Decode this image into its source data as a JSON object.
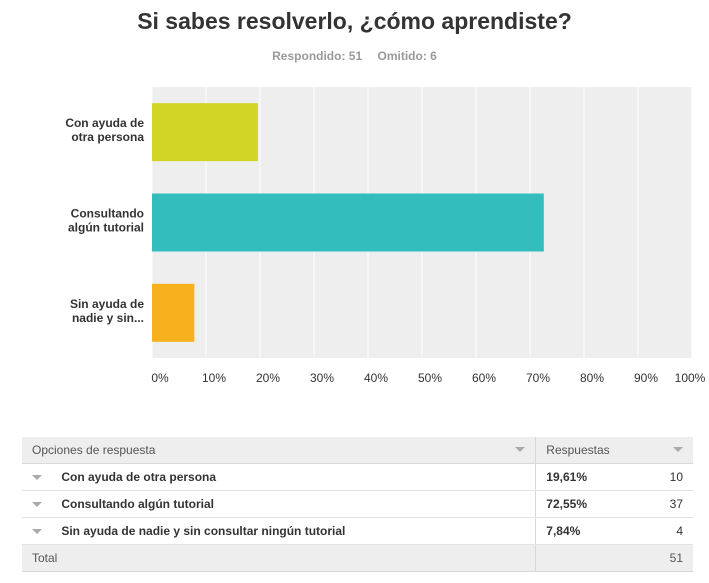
{
  "title": "Si sabes resolverlo, ¿cómo aprendiste?",
  "stats": {
    "answered": "Respondido: 51",
    "skipped": "Omitido: 6"
  },
  "chart_data": {
    "type": "bar",
    "orientation": "horizontal",
    "categories": [
      [
        "Con ayuda de",
        "otra persona"
      ],
      [
        "Consultando",
        "algún tutorial"
      ],
      [
        "Sin ayuda de",
        "nadie y sin..."
      ]
    ],
    "values": [
      19.61,
      72.55,
      7.84
    ],
    "colors": [
      "#d0d526",
      "#33bdbd",
      "#f7b11f"
    ],
    "xticks": [
      "0%",
      "10%",
      "20%",
      "30%",
      "40%",
      "50%",
      "60%",
      "70%",
      "80%",
      "90%",
      "100%"
    ],
    "xlim": [
      0,
      100
    ],
    "grid": true,
    "title": "Si sabes resolverlo, ¿cómo aprendiste?"
  },
  "table": {
    "header": {
      "option": "Opciones de respuesta",
      "responses": "Respuestas"
    },
    "rows": [
      {
        "option": "Con ayuda de otra persona",
        "percent": "19,61%",
        "count": "10"
      },
      {
        "option": "Consultando algún tutorial",
        "percent": "72,55%",
        "count": "37"
      },
      {
        "option": "Sin ayuda de nadie y sin consultar ningún tutorial",
        "percent": "7,84%",
        "count": "4"
      }
    ],
    "total": {
      "label": "Total",
      "count": "51"
    }
  }
}
